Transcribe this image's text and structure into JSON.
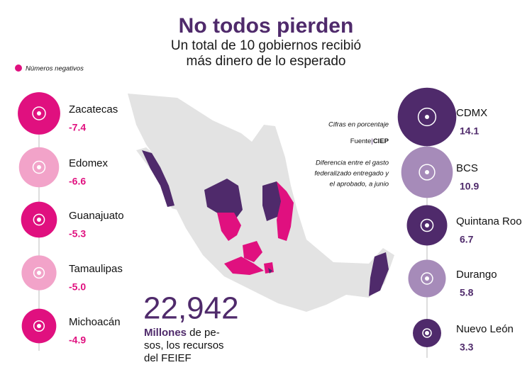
{
  "title": "No todos pierden",
  "subtitle_1": "Un total de 10 gobiernos recibió",
  "subtitle_2": "más dinero de lo esperado",
  "note_units": "Cifras en porcentaje",
  "source_label": "Fuente",
  "source": "CIEP",
  "note_def_1": "Diferencia entre el gasto",
  "note_def_2": "federalizado entregado y",
  "note_def_3": "el aprobado, a junio",
  "big_number": "22,942",
  "caption_bold": "Millones",
  "caption_1": " de pe-",
  "caption_2": "sos, los recursos",
  "caption_3": "del FEIEF",
  "chart_data": {
    "type": "bubble",
    "legend": "Números negativos",
    "legend_color": "#e0107f",
    "negative": {
      "categories": [
        "Zacatecas",
        "Edomex",
        "Guanajuato",
        "Tamaulipas",
        "Michoacán"
      ],
      "values": [
        -7.4,
        -6.6,
        -5.3,
        -5.0,
        -4.9
      ],
      "value_labels": [
        "-7.4",
        "-6.6",
        "-5.3",
        "-5.0",
        "-4.9"
      ],
      "colors": [
        "#e0107f",
        "#f2a3c9",
        "#e0107f",
        "#f2a3c9",
        "#e0107f"
      ],
      "label_color": "#e0107f"
    },
    "positive": {
      "categories": [
        "CDMX",
        "BCS",
        "Quintana Roo",
        "Durango",
        "Nuevo León"
      ],
      "values": [
        14.1,
        10.9,
        6.7,
        5.8,
        3.3
      ],
      "value_labels": [
        "14.1",
        "10.9",
        "6.7",
        "5.8",
        "3.3"
      ],
      "colors": [
        "#4f2a6b",
        "#a68bb9",
        "#4f2a6b",
        "#a68bb9",
        "#4f2a6b"
      ],
      "label_color": "#4f2a6b"
    }
  }
}
